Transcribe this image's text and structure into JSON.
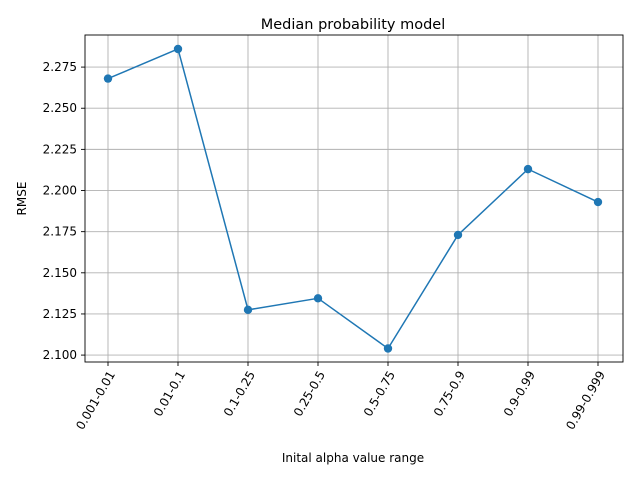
{
  "chart_data": {
    "type": "line",
    "title": "Median probability model",
    "xlabel": "Inital alpha value range",
    "ylabel": "RMSE",
    "categories": [
      "0.001-0.01",
      "0.01-0.1",
      "0.1-0.25",
      "0.25-0.5",
      "0.5-0.75",
      "0.75-0.9",
      "0.9-0.99",
      "0.99-0.999"
    ],
    "series": [
      {
        "values": [
          2.268,
          2.286,
          2.1275,
          2.1345,
          2.104,
          2.173,
          2.213,
          2.193
        ],
        "color": "#1f77b4",
        "marker": "circle"
      }
    ],
    "ylim": [
      2.0958,
      2.2945
    ],
    "yticks": [
      2.1,
      2.125,
      2.15,
      2.175,
      2.2,
      2.225,
      2.25,
      2.275
    ],
    "ytick_labels": [
      "2.100",
      "2.125",
      "2.150",
      "2.175",
      "2.200",
      "2.225",
      "2.250",
      "2.275"
    ],
    "grid": true,
    "xtick_rotation": 60
  }
}
